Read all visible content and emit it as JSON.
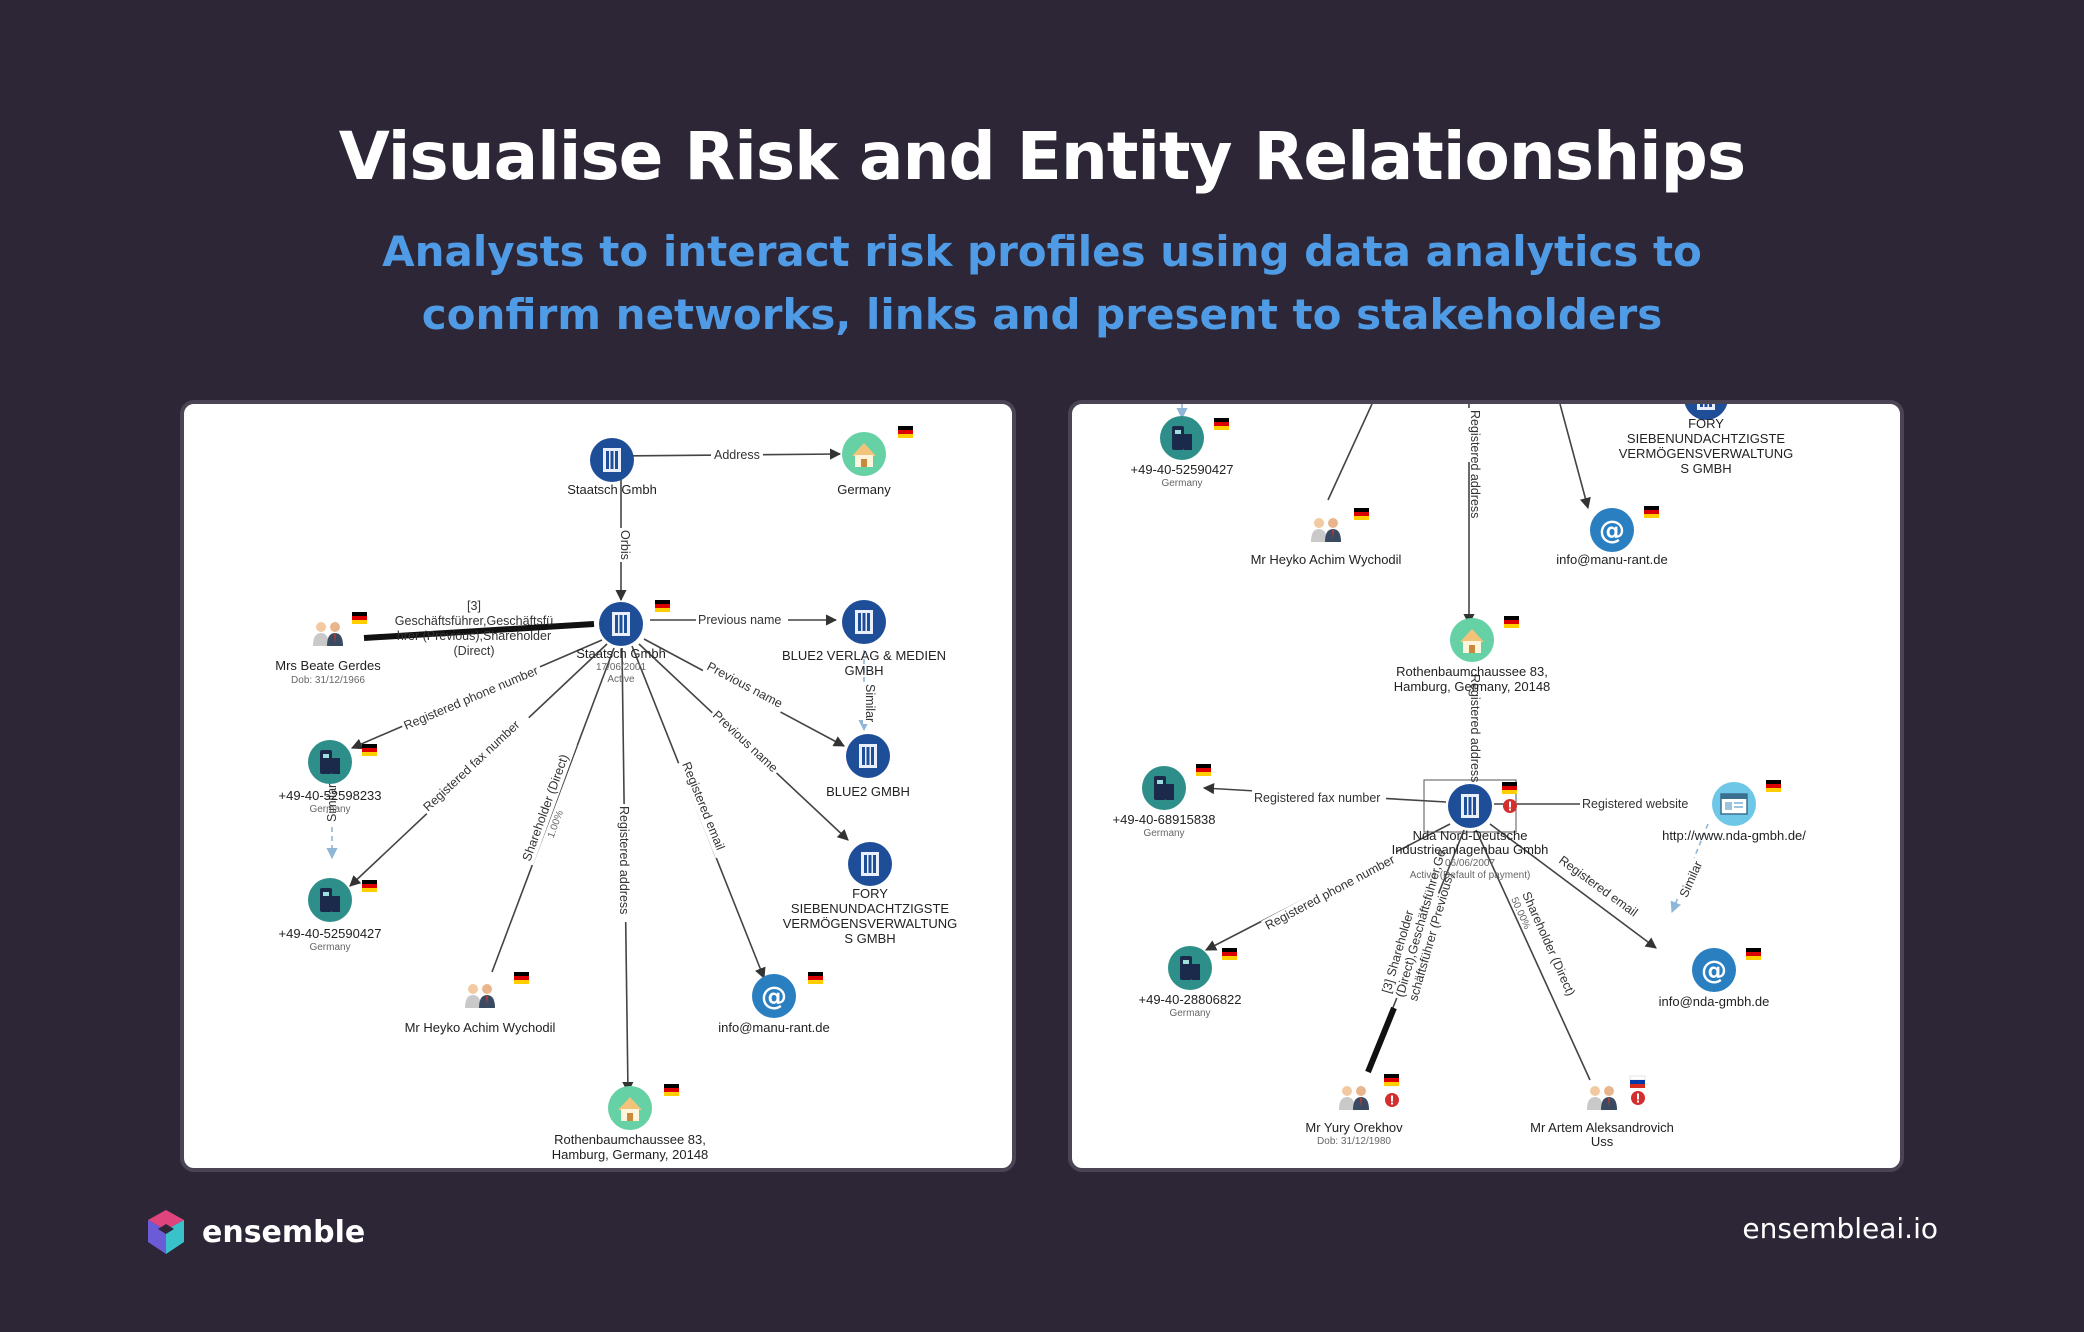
{
  "header": {
    "title": "Visualise Risk and Entity Relationships",
    "subtitle": "Analysts to interact risk profiles using data analytics to confirm networks, links and present to stakeholders"
  },
  "footer": {
    "brand": "ensemble",
    "website": "ensembleai.io"
  },
  "colors": {
    "background": "#2d2636",
    "subtitle": "#4f9be6",
    "company_node": "#1f4e99",
    "phone_node": "#2e8f8a",
    "address_node": "#66d1a5",
    "email_node": "#2a7fc1",
    "website_node": "#6ec7e6",
    "risk_badge": "#d32f2f"
  },
  "left_graph": {
    "nodes": [
      {
        "id": "staatsch-top",
        "type": "company",
        "label": "Staatsch Gmbh"
      },
      {
        "id": "germany",
        "type": "address",
        "label": "Germany"
      },
      {
        "id": "staatsch-center",
        "type": "company",
        "label": "Staatsch Gmbh",
        "sub1": "17/06/2001",
        "sub2": "Active"
      },
      {
        "id": "beate",
        "type": "person",
        "label": "Mrs Beate Gerdes",
        "sub1": "Dob: 31/12/1966"
      },
      {
        "id": "blue2-verlag",
        "type": "company",
        "label": "BLUE2 VERLAG & MEDIEN",
        "label2": "GMBH"
      },
      {
        "id": "blue2",
        "type": "company",
        "label": "BLUE2 GMBH"
      },
      {
        "id": "fory",
        "type": "company",
        "label": "FORY",
        "label2": "SIEBENUNDACHTZIGSTE",
        "label3": "VERMÖGENSVERWALTUNG",
        "label4": "S GMBH"
      },
      {
        "id": "phone1",
        "type": "phone",
        "label": "+49-40-52598233",
        "sub1": "Germany"
      },
      {
        "id": "phone2",
        "type": "phone",
        "label": "+49-40-52590427",
        "sub1": "Germany"
      },
      {
        "id": "heyko",
        "type": "person",
        "label": "Mr Heyko Achim Wychodil"
      },
      {
        "id": "email",
        "type": "email",
        "label": "info@manu-rant.de"
      },
      {
        "id": "rothenbaum",
        "type": "address",
        "label": "Rothenbaumchaussee 83,",
        "label2": "Hamburg, Germany, 20148"
      }
    ],
    "edges": {
      "address": "Address",
      "orbis": "Orbis",
      "role_1": "[3]",
      "role_2": "Geschäftsführer,Geschäftsfü",
      "role_3": "hrer (Previous),Shareholder",
      "role_4": "(Direct)",
      "previous_name_1": "Previous name",
      "previous_name_2": "Previous name",
      "previous_name_3": "Previous name",
      "similar_1": "Similar",
      "similar_2": "Similar",
      "reg_phone": "Registered phone number",
      "reg_fax": "Registered fax number",
      "shareholder": "Shareholder (Direct)",
      "shareholder_pct": "1.00%",
      "reg_address": "Registered address",
      "reg_email": "Registered email"
    }
  },
  "right_graph": {
    "nodes": [
      {
        "id": "phone-top",
        "type": "phone",
        "label": "+49-40-52590427",
        "sub1": "Germany"
      },
      {
        "id": "fory",
        "type": "company",
        "label": "FORY",
        "label2": "SIEBENUNDACHTZIGSTE",
        "label3": "VERMÖGENSVERWALTUNG",
        "label4": "S GMBH"
      },
      {
        "id": "heyko",
        "type": "person",
        "label": "Mr Heyko Achim Wychodil"
      },
      {
        "id": "email-top",
        "type": "email",
        "label": "info@manu-rant.de"
      },
      {
        "id": "rothenbaum",
        "type": "address",
        "label": "Rothenbaumchaussee 83,",
        "label2": "Hamburg, Germany, 20148"
      },
      {
        "id": "fax",
        "type": "phone",
        "label": "+49-40-68915838",
        "sub1": "Germany"
      },
      {
        "id": "nda",
        "type": "company",
        "label": "Nda Nord-Deutsche",
        "label2": "Industrieanlagenbau Gmbh",
        "sub1": "06/06/2007",
        "sub2": "Active (Default of payment)"
      },
      {
        "id": "website",
        "type": "website",
        "label": "http://www.nda-gmbh.de/"
      },
      {
        "id": "phone-bottom",
        "type": "phone",
        "label": "+49-40-28806822",
        "sub1": "Germany"
      },
      {
        "id": "email-bottom",
        "type": "email",
        "label": "info@nda-gmbh.de"
      },
      {
        "id": "yury",
        "type": "person",
        "label": "Mr Yury Orekhov",
        "sub1": "Dob: 31/12/1980"
      },
      {
        "id": "artem",
        "type": "person",
        "label": "Mr Artem Aleksandrovich",
        "label2": "Uss"
      }
    ],
    "edges": {
      "reg_address_top": "Registered address",
      "reg_address": "Registered address",
      "reg_fax": "Registered fax number",
      "reg_website": "Registered website",
      "reg_phone": "Registered phone number",
      "reg_email": "Registered email",
      "similar": "Similar",
      "yury_role_1": "[3] Shareholder",
      "yury_role_2": "(Direct),Geschäftsführer,Ge",
      "yury_role_3": "schäftsführer (Previous)",
      "artem_role": "Shareholder (Direct)",
      "artem_pct": "50.00%"
    }
  }
}
